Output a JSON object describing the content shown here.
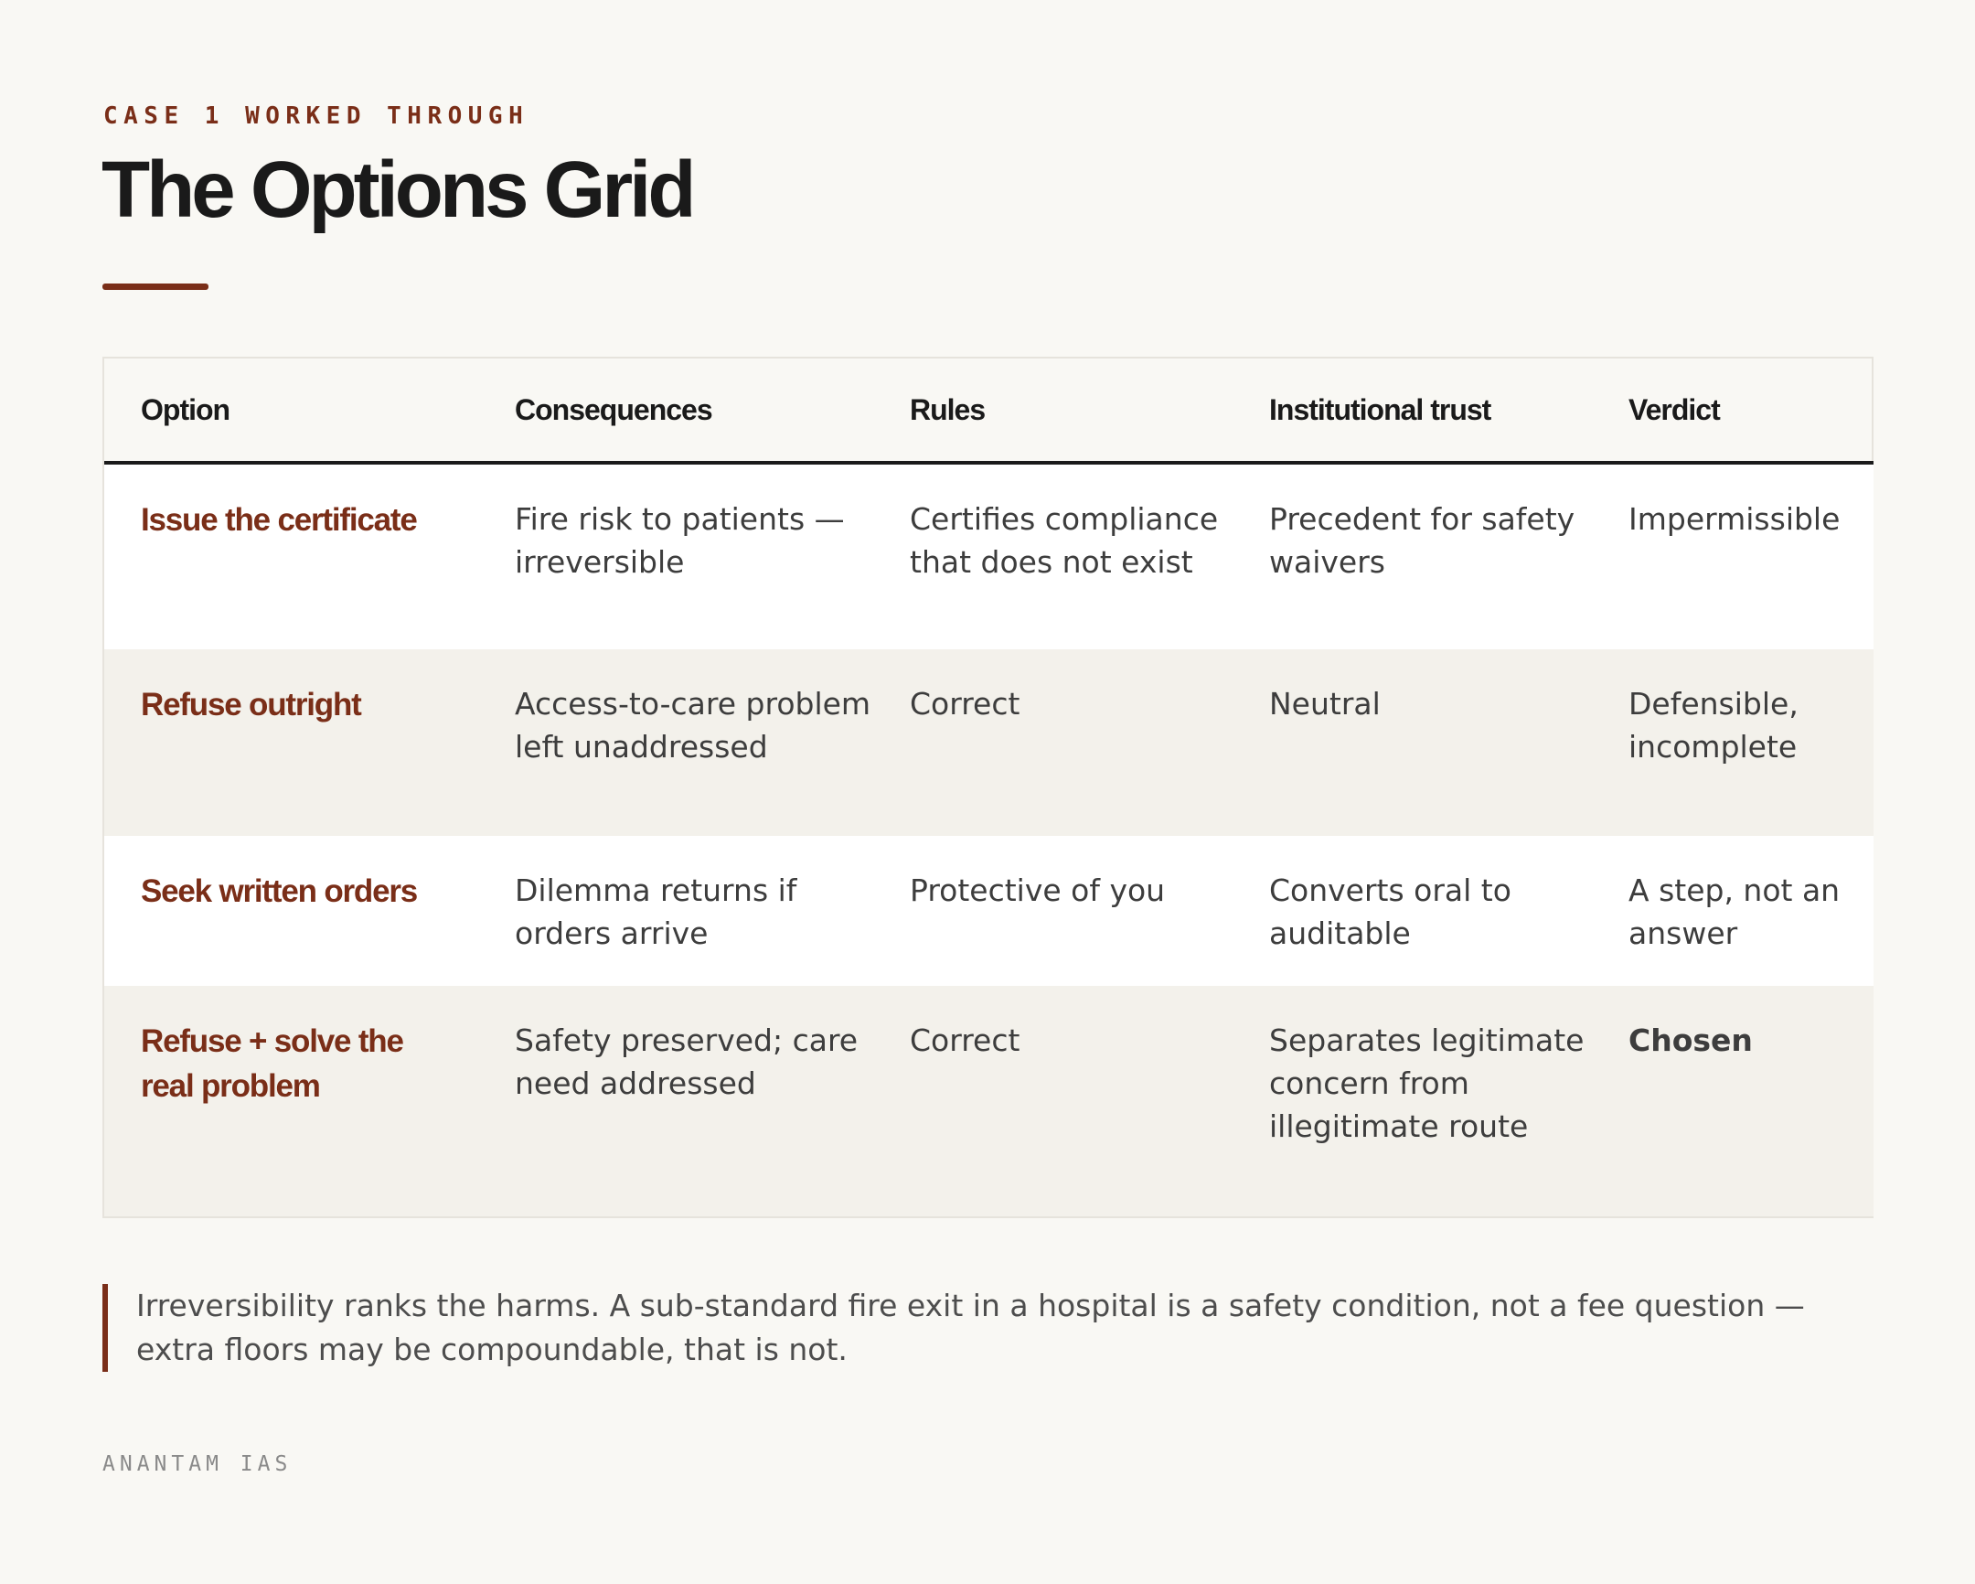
{
  "header": {
    "eyebrow": "CASE 1 WORKED THROUGH",
    "title": "The Options Grid"
  },
  "grid": {
    "columns": [
      "Option",
      "Consequences",
      "Rules",
      "Institutional trust",
      "Verdict"
    ],
    "rows": [
      {
        "option": "Issue the certificate",
        "consequences": "Fire risk to patients — irreversible",
        "rules": "Certifies compliance that does not exist",
        "trust": "Precedent for safety waivers",
        "verdict": "Impermissible"
      },
      {
        "option": "Refuse outright",
        "consequences": "Access-to-care problem left unaddressed",
        "rules": "Correct",
        "trust": "Neutral",
        "verdict": "Defensible, incomplete"
      },
      {
        "option": "Seek written orders",
        "consequences": "Dilemma returns if orders arrive",
        "rules": "Protective of you",
        "trust": "Converts oral to auditable",
        "verdict": "A step, not an answer"
      },
      {
        "option": "Refuse + solve the real problem",
        "consequences": "Safety preserved; care need addressed",
        "rules": "Correct",
        "trust": "Separates legitimate concern from illegitimate route",
        "verdict": "Chosen"
      }
    ]
  },
  "note": "Irreversibility ranks the harms. A sub-standard fire exit in a hospital is a safety condition, not a fee question — extra floors may be compoundable, that is not.",
  "footer": "ANANTAM IAS",
  "colors": {
    "accent": "#7a2e18",
    "background": "#f9f8f4",
    "row_alt": "#f3f1eb",
    "ink": "#1a1a1a"
  }
}
